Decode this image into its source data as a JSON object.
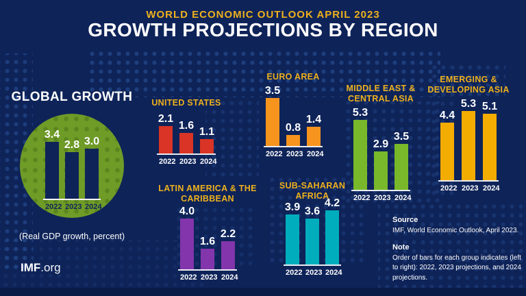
{
  "header": {
    "kicker": "WORLD ECONOMIC OUTLOOK APRIL 2023",
    "title": "GROWTH PROJECTIONS BY REGION"
  },
  "footer": {
    "brand_bold": "IMF",
    "brand_suffix": ".org"
  },
  "source": {
    "label": "Source",
    "text": "IMF, World Economic Outlook, April 2023."
  },
  "note": {
    "label": "Note",
    "text": "Order of bars for each group indicates (left to right): 2022, 2023 projections, and 2024 projections."
  },
  "colors": {
    "background": "#0e2358",
    "gold": "#efb11d",
    "white": "#ffffff",
    "circle_green": "#6f9b27",
    "bottom_band": "#0a1b47"
  },
  "chart_data": [
    {
      "id": "global-growth",
      "type": "bar",
      "title": "GLOBAL GROWTH",
      "subtitle": "(Real GDP growth, percent)",
      "categories": [
        "2022",
        "2023",
        "2024"
      ],
      "values": [
        3.4,
        2.8,
        3.0
      ],
      "bar_color": "#0e2358",
      "value_color": "#ffffff",
      "year_color": "#0e2358",
      "ylim": [
        0,
        6
      ],
      "grid": false,
      "legend": "none"
    },
    {
      "id": "united-states",
      "type": "bar",
      "title": "UNITED STATES",
      "title_lines": [
        "UNITED STATES"
      ],
      "categories": [
        "2022",
        "2023",
        "2024"
      ],
      "values": [
        2.1,
        1.6,
        1.1
      ],
      "bar_color": "#d93425",
      "ylim": [
        0,
        6
      ],
      "grid": false,
      "legend": "none"
    },
    {
      "id": "euro-area",
      "type": "bar",
      "title": "EURO AREA",
      "title_lines": [
        "EURO AREA"
      ],
      "categories": [
        "2022",
        "2023",
        "2024"
      ],
      "values": [
        3.5,
        0.8,
        1.4
      ],
      "bar_color": "#f7941e",
      "ylim": [
        0,
        6
      ],
      "grid": false,
      "legend": "none"
    },
    {
      "id": "middle-east-central-asia",
      "type": "bar",
      "title": "MIDDLE EAST & CENTRAL ASIA",
      "title_lines": [
        "MIDDLE EAST &",
        "CENTRAL ASIA"
      ],
      "categories": [
        "2022",
        "2023",
        "2024"
      ],
      "values": [
        5.3,
        2.9,
        3.5
      ],
      "bar_color": "#78b82a",
      "ylim": [
        0,
        6
      ],
      "grid": false,
      "legend": "none"
    },
    {
      "id": "emerging-developing-asia",
      "type": "bar",
      "title": "EMERGING & DEVELOPING ASIA",
      "title_lines": [
        "EMERGING &",
        "DEVELOPING ASIA"
      ],
      "categories": [
        "2022",
        "2023",
        "2024"
      ],
      "values": [
        4.4,
        5.3,
        5.1
      ],
      "bar_color": "#f3ac00",
      "ylim": [
        0,
        6
      ],
      "grid": false,
      "legend": "none"
    },
    {
      "id": "latin-america-caribbean",
      "type": "bar",
      "title": "LATIN AMERICA & THE CARIBBEAN",
      "title_lines": [
        "LATIN AMERICA & THE",
        "CARIBBEAN"
      ],
      "categories": [
        "2022",
        "2023",
        "2024"
      ],
      "values": [
        4.0,
        1.6,
        2.2
      ],
      "bar_color": "#8335ab",
      "ylim": [
        0,
        6
      ],
      "grid": false,
      "legend": "none"
    },
    {
      "id": "sub-saharan-africa",
      "type": "bar",
      "title": "SUB-SAHARAN AFRICA",
      "title_lines": [
        "SUB-SAHARAN",
        "AFRICA"
      ],
      "categories": [
        "2022",
        "2023",
        "2024"
      ],
      "values": [
        3.9,
        3.6,
        4.2
      ],
      "bar_color": "#00adbd",
      "ylim": [
        0,
        6
      ],
      "grid": false,
      "legend": "none"
    }
  ]
}
